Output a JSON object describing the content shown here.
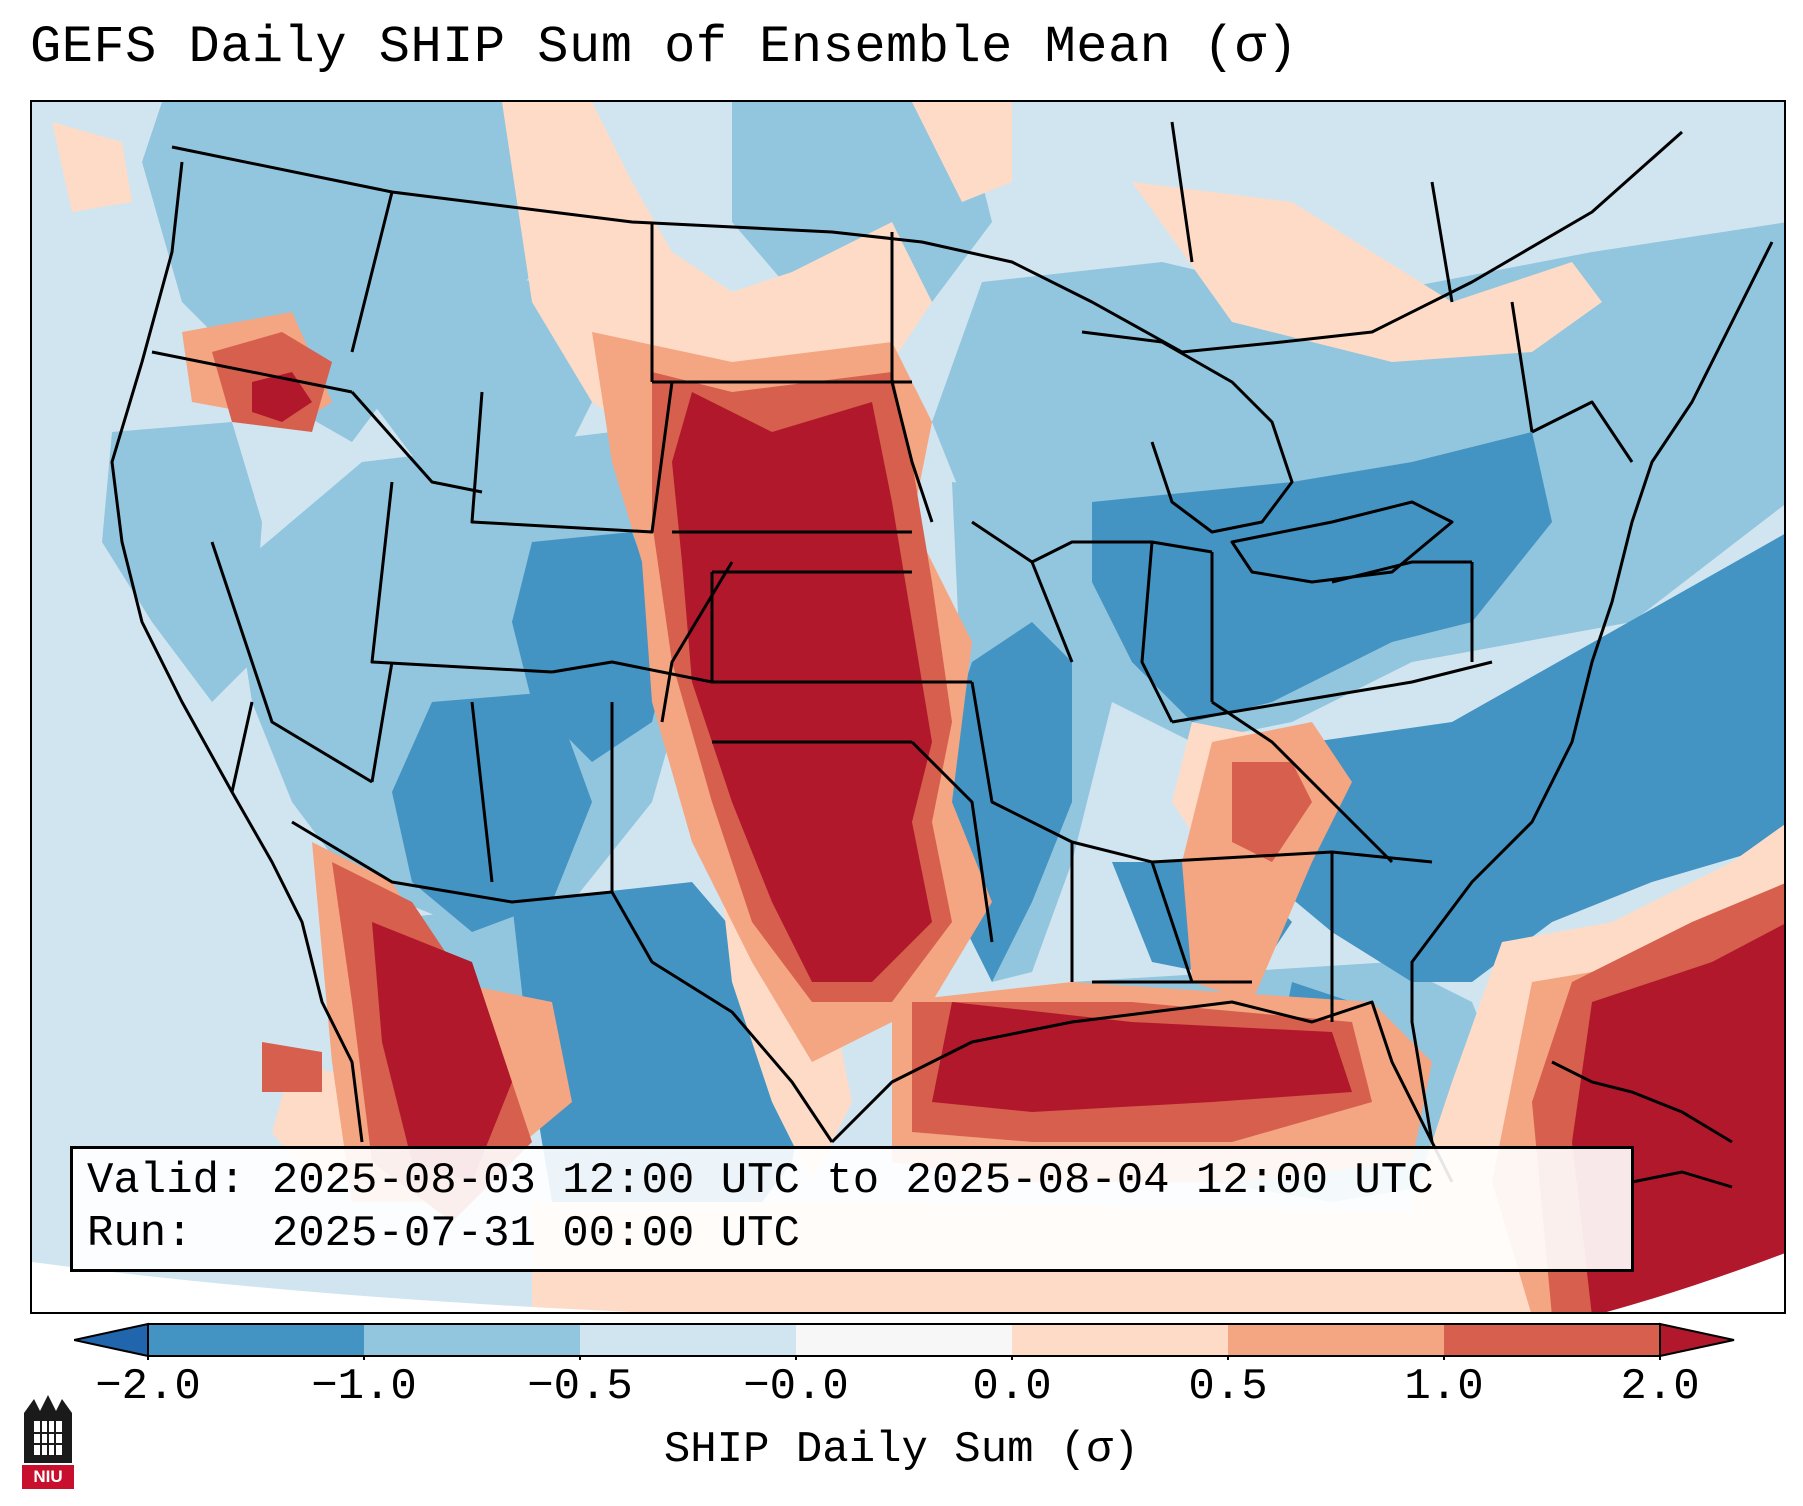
{
  "title": "GEFS Daily SHIP Sum of Ensemble Mean (σ)",
  "info": {
    "valid_line": "Valid: 2025-08-03 12:00 UTC to 2025-08-04 12:00 UTC",
    "run_line": "Run:   2025-07-31 00:00 UTC"
  },
  "colorbar": {
    "label": "SHIP Daily Sum (σ)",
    "ticks": [
      "−2.0",
      "−1.0",
      "−0.5",
      "−0.0",
      "0.0",
      "0.5",
      "1.0",
      "2.0"
    ],
    "bins": [
      {
        "range": "< -2.0",
        "color": "#2166ac"
      },
      {
        "range": "-2.0 to -1.0",
        "color": "#4393c3"
      },
      {
        "range": "-1.0 to -0.5",
        "color": "#92c5de"
      },
      {
        "range": "-0.5 to -0.0",
        "color": "#d1e5f0"
      },
      {
        "range": "-0.0 to 0.0",
        "color": "#f7f7f7"
      },
      {
        "range": "0.0 to 0.5",
        "color": "#fddbc7"
      },
      {
        "range": "0.5 to 1.0",
        "color": "#f4a582"
      },
      {
        "range": "1.0 to 2.0",
        "color": "#d6604d"
      },
      {
        "range": "> 2.0",
        "color": "#b2182b"
      }
    ]
  },
  "logo": {
    "text": "NIU",
    "color": "#c8102e"
  },
  "icons": {
    "logo": "niu-building-icon"
  }
}
